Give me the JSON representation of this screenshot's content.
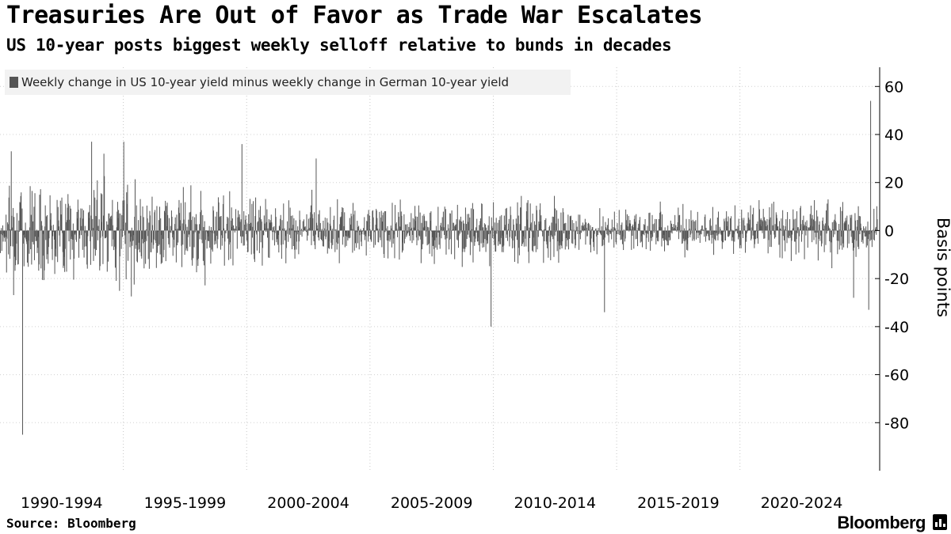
{
  "header": {
    "title": "Treasuries Are Out of Favor as Trade War Escalates",
    "subtitle": "US 10-year posts biggest weekly selloff relative to bunds in decades"
  },
  "footer": {
    "source": "Source: Bloomberg",
    "brand": "Bloomberg"
  },
  "chart_data": {
    "type": "bar",
    "title": "Treasuries Are Out of Favor as Trade War Escalates",
    "subtitle": "US 10-year posts biggest weekly selloff relative to bunds in decades",
    "xlabel": "",
    "ylabel": "Basis points",
    "y_axis_side": "right",
    "ylim": [
      -100,
      68
    ],
    "yticks": [
      60,
      40,
      20,
      0,
      -20,
      -40,
      -60,
      -80
    ],
    "xlim": [
      1990.0,
      2025.6
    ],
    "x_tick_labels": [
      "1990-1994",
      "1995-1999",
      "2000-2004",
      "2005-2009",
      "2010-2014",
      "2015-2019",
      "2020-2024"
    ],
    "x_tick_label_centers": [
      1992.5,
      1997.5,
      2002.5,
      2007.5,
      2012.5,
      2017.5,
      2022.5
    ],
    "x_gridlines": [
      1995,
      2000,
      2005,
      2010,
      2015,
      2020
    ],
    "grid": "dotted",
    "legend_position": "top-left",
    "bar_color": "#555555",
    "series": [
      {
        "name": "Weekly change in US 10-year yield minus weekly change in German 10-year yield",
        "frequency": "weekly",
        "start": 1990.0,
        "notable_points": [
          {
            "x": 1990.45,
            "y": 33
          },
          {
            "x": 1990.9,
            "y": -85
          },
          {
            "x": 1993.7,
            "y": 37
          },
          {
            "x": 1994.2,
            "y": 32
          },
          {
            "x": 1995.0,
            "y": 37
          },
          {
            "x": 1999.8,
            "y": 36
          },
          {
            "x": 2002.8,
            "y": 30
          },
          {
            "x": 2009.9,
            "y": -40
          },
          {
            "x": 2014.5,
            "y": -34
          },
          {
            "x": 2024.6,
            "y": -28
          },
          {
            "x": 2025.2,
            "y": -33
          },
          {
            "x": 2025.28,
            "y": 54
          }
        ]
      }
    ]
  }
}
